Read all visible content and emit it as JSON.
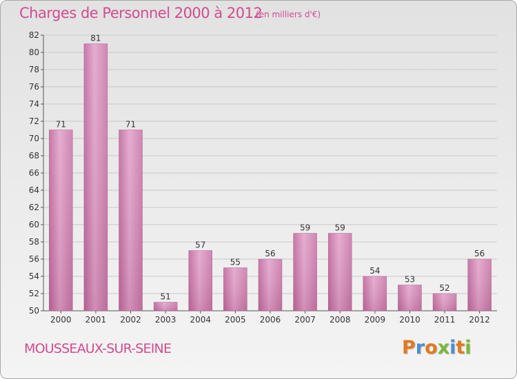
{
  "header": {
    "title": "Charges de Personnel 2000 à 2012",
    "subtitle": "(en milliers d'€)"
  },
  "footer": {
    "city": "MOUSSEAUX-SUR-SEINE",
    "logo_text": "Proxiti",
    "logo_colors": [
      "#e07a1f",
      "#4b8fd1",
      "#e07a1f",
      "#79b83a",
      "#4b8fd1",
      "#e07a1f",
      "#79b83a"
    ]
  },
  "colors": {
    "bar": "#c96fa3",
    "bar_light": "#e6a8cf",
    "bar_dark": "#b0558a",
    "text": "#d14b8f",
    "axis_text": "#333333"
  },
  "chart_data": {
    "type": "bar",
    "title": "Charges de Personnel 2000 à 2012",
    "subtitle": "(en milliers d'€)",
    "xlabel": "",
    "ylabel": "",
    "categories": [
      "2000",
      "2001",
      "2002",
      "2003",
      "2004",
      "2005",
      "2006",
      "2007",
      "2008",
      "2009",
      "2010",
      "2011",
      "2012"
    ],
    "values": [
      71,
      81,
      71,
      51,
      57,
      55,
      56,
      59,
      59,
      54,
      53,
      52,
      56
    ],
    "ylim": [
      50,
      82
    ],
    "yticks": [
      50,
      52,
      54,
      56,
      58,
      60,
      62,
      64,
      66,
      68,
      70,
      72,
      74,
      76,
      78,
      80,
      82
    ],
    "grid": true,
    "legend": "none"
  }
}
